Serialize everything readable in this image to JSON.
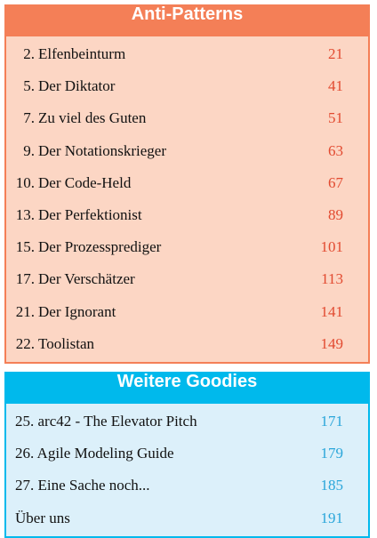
{
  "sections": [
    {
      "title": "Anti-Patterns",
      "items": [
        {
          "number": "2.",
          "title": "Elfenbeinturm",
          "page": 21
        },
        {
          "number": "5.",
          "title": "Der Diktator",
          "page": 41
        },
        {
          "number": "7.",
          "title": "Zu viel des Guten",
          "page": 51
        },
        {
          "number": "9.",
          "title": "Der Notationskrieger",
          "page": 63
        },
        {
          "number": "10.",
          "title": "Der Code-Held",
          "page": 67
        },
        {
          "number": "13.",
          "title": "Der Perfektionist",
          "page": 89
        },
        {
          "number": "15.",
          "title": "Der Prozessprediger",
          "page": 101
        },
        {
          "number": "17.",
          "title": "Der Verschätzer",
          "page": 113
        },
        {
          "number": "21.",
          "title": "Der Ignorant",
          "page": 141
        },
        {
          "number": "22.",
          "title": "Toolistan",
          "page": 149
        }
      ]
    },
    {
      "title": "Weitere Goodies",
      "items": [
        {
          "title": "25. arc42 - The Elevator Pitch",
          "page": 171
        },
        {
          "title": "26. Agile Modeling Guide",
          "page": 179
        },
        {
          "title": "27. Eine Sache noch...",
          "page": 185
        },
        {
          "title": "Über uns",
          "page": 191
        }
      ]
    }
  ]
}
